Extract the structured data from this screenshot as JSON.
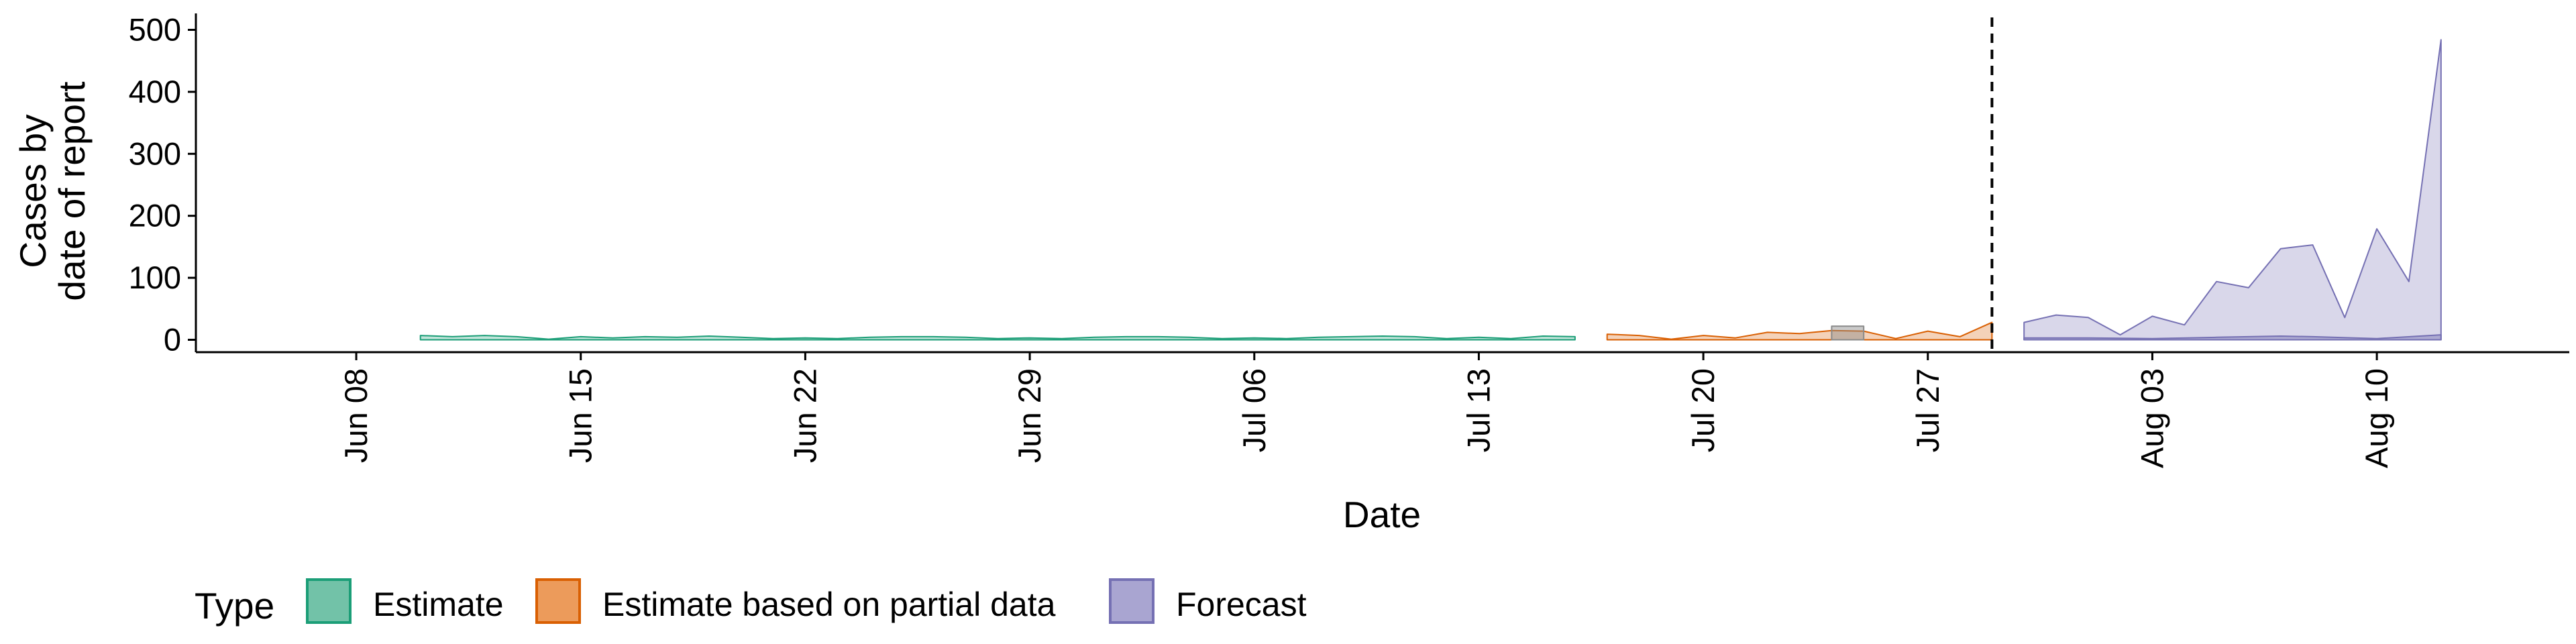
{
  "chart_data": {
    "type": "area",
    "xlabel": "Date",
    "ylabel": [
      "Cases by",
      "date of report"
    ],
    "ylim": [
      -20,
      520
    ],
    "xlim": [
      "2020-06-03",
      "2020-08-16"
    ],
    "y_ticks": [
      0,
      100,
      200,
      300,
      400,
      500
    ],
    "x_ticks": [
      {
        "date": "2020-06-08",
        "label": "Jun 08"
      },
      {
        "date": "2020-06-15",
        "label": "Jun 15"
      },
      {
        "date": "2020-06-22",
        "label": "Jun 22"
      },
      {
        "date": "2020-06-29",
        "label": "Jun 29"
      },
      {
        "date": "2020-07-06",
        "label": "Jul 06"
      },
      {
        "date": "2020-07-13",
        "label": "Jul 13"
      },
      {
        "date": "2020-07-20",
        "label": "Jul 20"
      },
      {
        "date": "2020-07-27",
        "label": "Jul 27"
      },
      {
        "date": "2020-08-03",
        "label": "Aug 03"
      },
      {
        "date": "2020-08-10",
        "label": "Aug 10"
      }
    ],
    "reference_line": {
      "date": "2020-07-29",
      "style": "dashed",
      "color": "#000000"
    },
    "legend": {
      "title": "Type",
      "position": "bottom",
      "entries": [
        {
          "label": "Estimate",
          "fill": "#72C2A8",
          "stroke": "#1B9E77"
        },
        {
          "label": "Estimate based on partial data",
          "fill": "#EC9B5B",
          "stroke": "#D95F02"
        },
        {
          "label": "Forecast",
          "fill": "#A9A5D1",
          "stroke": "#7570B3"
        }
      ]
    },
    "series": [
      {
        "type": "Estimate",
        "fill": "#1B9E77",
        "stroke": "#1B9E77",
        "x": [
          "2020-06-10",
          "2020-06-11",
          "2020-06-12",
          "2020-06-13",
          "2020-06-14",
          "2020-06-15",
          "2020-06-16",
          "2020-06-17",
          "2020-06-18",
          "2020-06-19",
          "2020-06-20",
          "2020-06-21",
          "2020-06-22",
          "2020-06-23",
          "2020-06-24",
          "2020-06-25",
          "2020-06-26",
          "2020-06-27",
          "2020-06-28",
          "2020-06-29",
          "2020-06-30",
          "2020-07-01",
          "2020-07-02",
          "2020-07-03",
          "2020-07-04",
          "2020-07-05",
          "2020-07-06",
          "2020-07-07",
          "2020-07-08",
          "2020-07-09",
          "2020-07-10",
          "2020-07-11",
          "2020-07-12",
          "2020-07-13",
          "2020-07-14",
          "2020-07-15",
          "2020-07-16"
        ],
        "lower": [
          0,
          0,
          0,
          0,
          0,
          0,
          0,
          0,
          0,
          0,
          0,
          0,
          0,
          0,
          0,
          0,
          0,
          0,
          0,
          0,
          0,
          0,
          0,
          0,
          0,
          0,
          0,
          0,
          0,
          0,
          0,
          0,
          0,
          0,
          0,
          0,
          0
        ],
        "upper": [
          7,
          5,
          7,
          5,
          1,
          5,
          3,
          5,
          4,
          6,
          4,
          2,
          3,
          2,
          4,
          5,
          5,
          4,
          2,
          3,
          2,
          4,
          5,
          5,
          4,
          2,
          3,
          2,
          4,
          5,
          6,
          5,
          2,
          4,
          2,
          6,
          5
        ]
      },
      {
        "type": "Estimate based on partial data",
        "fill": "#D95F02",
        "stroke": "#D95F02",
        "x": [
          "2020-07-17",
          "2020-07-18",
          "2020-07-19",
          "2020-07-20",
          "2020-07-21",
          "2020-07-22",
          "2020-07-23",
          "2020-07-24",
          "2020-07-25",
          "2020-07-26",
          "2020-07-27",
          "2020-07-28",
          "2020-07-29"
        ],
        "lower": [
          0,
          0,
          0,
          0,
          0,
          0,
          0,
          0,
          0,
          0,
          0,
          0,
          0
        ],
        "upper": [
          9,
          7,
          1,
          7,
          3,
          12,
          10,
          15,
          14,
          2,
          14,
          5,
          28
        ]
      },
      {
        "type": "Forecast",
        "fill": "#7570B3",
        "stroke": "#7570B3",
        "x": [
          "2020-07-30",
          "2020-07-31",
          "2020-08-01",
          "2020-08-02",
          "2020-08-03",
          "2020-08-04",
          "2020-08-05",
          "2020-08-06",
          "2020-08-07",
          "2020-08-08",
          "2020-08-09",
          "2020-08-10",
          "2020-08-11",
          "2020-08-12"
        ],
        "lower": [
          0,
          0,
          0,
          0,
          0,
          0,
          0,
          0,
          0,
          0,
          0,
          0,
          0,
          0
        ],
        "upper": [
          28,
          40,
          36,
          8,
          38,
          24,
          94,
          84,
          147,
          153,
          36,
          179,
          94,
          484
        ]
      }
    ],
    "inner_bands": [
      {
        "type": "Estimate based on partial data",
        "fill": "#8A8A8A",
        "x": [
          "2020-07-24",
          "2020-07-25"
        ],
        "lower": [
          0,
          0
        ],
        "upper": [
          22,
          22
        ]
      },
      {
        "type": "Forecast",
        "fill": "#7570B3",
        "x": [
          "2020-07-30",
          "2020-08-01",
          "2020-08-03",
          "2020-08-05",
          "2020-08-07",
          "2020-08-08",
          "2020-08-10",
          "2020-08-12"
        ],
        "lower": [
          0,
          0,
          0,
          0,
          0,
          0,
          0,
          0
        ],
        "upper": [
          3,
          3,
          2,
          4,
          6,
          5,
          2,
          8
        ]
      }
    ]
  }
}
